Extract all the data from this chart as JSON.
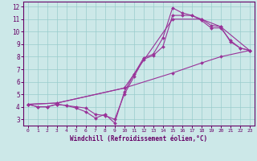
{
  "xlabel": "Windchill (Refroidissement éolien,°C)",
  "bg_color": "#cce8e8",
  "line_color": "#993399",
  "grid_color": "#99cccc",
  "spine_color": "#660066",
  "xlim": [
    -0.5,
    23.5
  ],
  "ylim": [
    2.5,
    12.4
  ],
  "xticks": [
    0,
    1,
    2,
    3,
    4,
    5,
    6,
    7,
    8,
    9,
    10,
    11,
    12,
    13,
    14,
    15,
    16,
    17,
    18,
    19,
    20,
    21,
    22,
    23
  ],
  "yticks": [
    3,
    4,
    5,
    6,
    7,
    8,
    9,
    10,
    11,
    12
  ],
  "series": [
    {
      "x": [
        0,
        1,
        2,
        3,
        4,
        5,
        6,
        7,
        8,
        9,
        10,
        11,
        12,
        13,
        14,
        15,
        16,
        17,
        18,
        19,
        20,
        21,
        22,
        23
      ],
      "y": [
        4.2,
        4.0,
        4.0,
        4.2,
        4.1,
        3.9,
        3.6,
        3.1,
        3.4,
        2.7,
        5.2,
        6.6,
        7.9,
        8.2,
        9.5,
        11.9,
        11.5,
        11.3,
        11.0,
        10.5,
        10.4,
        9.2,
        8.7,
        8.5
      ]
    },
    {
      "x": [
        0,
        1,
        2,
        3,
        4,
        5,
        6,
        7,
        8,
        9,
        10,
        11,
        12,
        13,
        14,
        15,
        16,
        17,
        18,
        19,
        20,
        21,
        22,
        23
      ],
      "y": [
        4.2,
        4.0,
        4.0,
        4.2,
        4.1,
        4.0,
        3.9,
        3.4,
        3.3,
        3.0,
        5.0,
        6.4,
        7.8,
        8.1,
        8.8,
        11.3,
        11.3,
        11.3,
        10.9,
        10.3,
        10.3,
        9.3,
        8.7,
        8.5
      ]
    },
    {
      "x": [
        0,
        3,
        10,
        15,
        18,
        20,
        23
      ],
      "y": [
        4.2,
        4.3,
        5.5,
        6.7,
        7.5,
        8.0,
        8.5
      ]
    },
    {
      "comment": "triangle-ish line: (0,4.2)->(15,11.0)->(23,8.5)",
      "x": [
        0,
        3,
        10,
        15,
        18,
        20,
        23
      ],
      "y": [
        4.2,
        4.3,
        5.5,
        11.0,
        11.0,
        10.4,
        8.5
      ]
    }
  ]
}
